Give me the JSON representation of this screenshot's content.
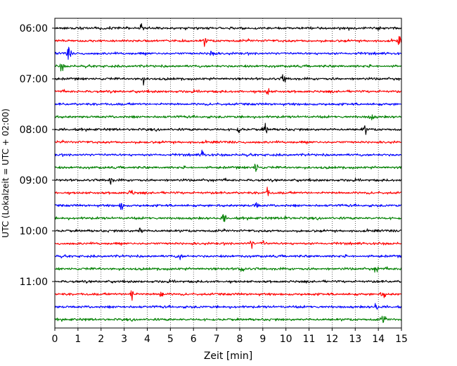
{
  "chart_data": {
    "type": "line",
    "xlabel": "Zeit  [min]",
    "ylabel": "UTC (Lokalzeit = UTC + 02:00)",
    "xlim": [
      0,
      15
    ],
    "x_ticks": [
      0,
      1,
      2,
      3,
      4,
      5,
      6,
      7,
      8,
      9,
      10,
      11,
      12,
      13,
      14,
      15
    ],
    "grid": "vertical dotted",
    "y_tick_labels": [
      "06:00",
      "07:00",
      "08:00",
      "09:00",
      "10:00",
      "11:00"
    ],
    "trace_interval_min": 15,
    "first_trace_time": "06:00",
    "trace_count": 24,
    "colors": [
      "#000000",
      "#ff0000",
      "#0000ff",
      "#008000"
    ],
    "events": [
      {
        "trace": 0,
        "x": 3.7,
        "amp": 0.55
      },
      {
        "trace": 1,
        "x": 6.5,
        "amp": 0.5
      },
      {
        "trace": 1,
        "x": 14.9,
        "amp": 0.5
      },
      {
        "trace": 2,
        "x": 0.6,
        "amp": 0.9
      },
      {
        "trace": 2,
        "x": 6.8,
        "amp": 0.9
      },
      {
        "trace": 3,
        "x": 0.3,
        "amp": 0.5
      },
      {
        "trace": 4,
        "x": 3.8,
        "amp": 0.55
      },
      {
        "trace": 4,
        "x": 9.9,
        "amp": 0.55
      },
      {
        "trace": 5,
        "x": 9.2,
        "amp": 0.5
      },
      {
        "trace": 7,
        "x": 13.7,
        "amp": 0.7
      },
      {
        "trace": 8,
        "x": 8.0,
        "amp": 0.8
      },
      {
        "trace": 8,
        "x": 9.1,
        "amp": 1.0
      },
      {
        "trace": 8,
        "x": 13.4,
        "amp": 0.6
      },
      {
        "trace": 10,
        "x": 6.4,
        "amp": 0.5
      },
      {
        "trace": 11,
        "x": 8.7,
        "amp": 0.6
      },
      {
        "trace": 12,
        "x": 2.4,
        "amp": 0.45
      },
      {
        "trace": 13,
        "x": 3.3,
        "amp": 0.55
      },
      {
        "trace": 13,
        "x": 9.2,
        "amp": 0.55
      },
      {
        "trace": 14,
        "x": 2.9,
        "amp": 0.7
      },
      {
        "trace": 14,
        "x": 8.7,
        "amp": 0.5
      },
      {
        "trace": 15,
        "x": 7.3,
        "amp": 0.55
      },
      {
        "trace": 15,
        "x": 10.0,
        "amp": 0.5
      },
      {
        "trace": 16,
        "x": 3.7,
        "amp": 0.5
      },
      {
        "trace": 17,
        "x": 8.5,
        "amp": 0.55
      },
      {
        "trace": 17,
        "x": 9.0,
        "amp": 0.5
      },
      {
        "trace": 18,
        "x": 5.4,
        "amp": 0.55
      },
      {
        "trace": 19,
        "x": 8.1,
        "amp": 0.5
      },
      {
        "trace": 19,
        "x": 13.9,
        "amp": 0.5
      },
      {
        "trace": 21,
        "x": 3.3,
        "amp": 1.2
      },
      {
        "trace": 21,
        "x": 4.6,
        "amp": 0.5
      },
      {
        "trace": 21,
        "x": 14.2,
        "amp": 0.5
      },
      {
        "trace": 22,
        "x": 13.9,
        "amp": 0.5
      },
      {
        "trace": 23,
        "x": 14.2,
        "amp": 0.5
      }
    ]
  }
}
